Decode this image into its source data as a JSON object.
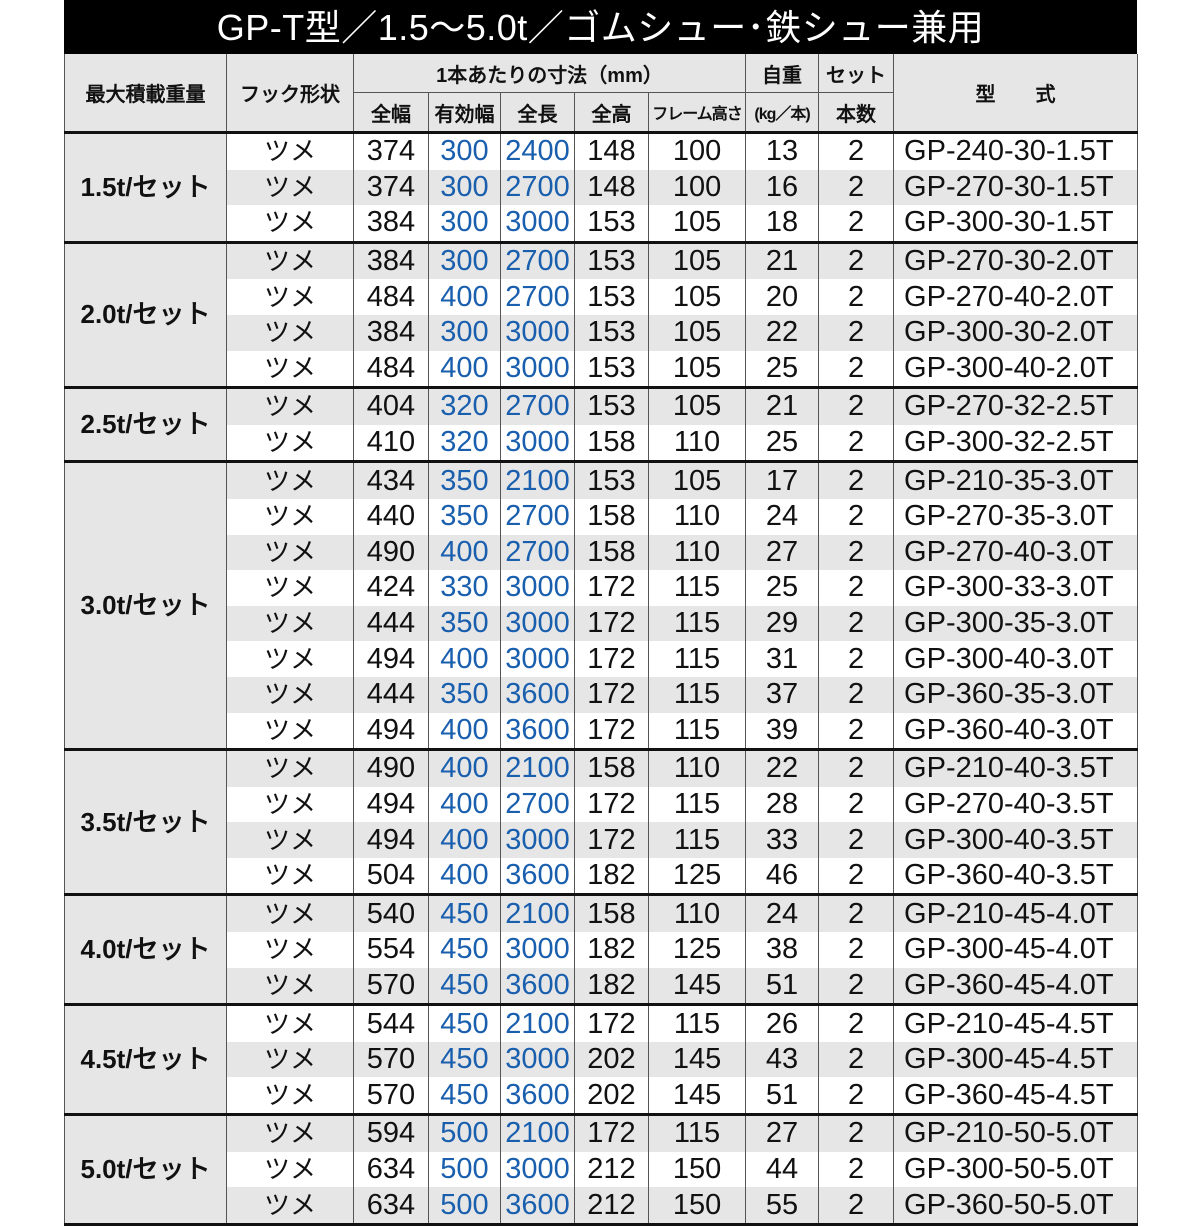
{
  "title": "GP-T型／1.5〜5.0t／ゴムシュー･鉄シュー兼用",
  "headers": {
    "max_load": "最大積載重量",
    "hook": "フック形状",
    "dims": "1本あたりの寸法（mm）",
    "width": "全幅",
    "eff_width": "有効幅",
    "length": "全長",
    "height": "全高",
    "frame_height": "フレーム高さ",
    "weight_1": "自重",
    "weight_2": "(kg／本)",
    "set_1": "セット",
    "set_2": "本数",
    "model": "型　　式"
  },
  "groups": [
    {
      "load": "1.5t/セット",
      "rows": [
        [
          "ツメ",
          "374",
          "300",
          "2400",
          "148",
          "100",
          "13",
          "2",
          "GP-240-30-1.5T"
        ],
        [
          "ツメ",
          "374",
          "300",
          "2700",
          "148",
          "100",
          "16",
          "2",
          "GP-270-30-1.5T"
        ],
        [
          "ツメ",
          "384",
          "300",
          "3000",
          "153",
          "105",
          "18",
          "2",
          "GP-300-30-1.5T"
        ]
      ]
    },
    {
      "load": "2.0t/セット",
      "rows": [
        [
          "ツメ",
          "384",
          "300",
          "2700",
          "153",
          "105",
          "21",
          "2",
          "GP-270-30-2.0T"
        ],
        [
          "ツメ",
          "484",
          "400",
          "2700",
          "153",
          "105",
          "20",
          "2",
          "GP-270-40-2.0T"
        ],
        [
          "ツメ",
          "384",
          "300",
          "3000",
          "153",
          "105",
          "22",
          "2",
          "GP-300-30-2.0T"
        ],
        [
          "ツメ",
          "484",
          "400",
          "3000",
          "153",
          "105",
          "25",
          "2",
          "GP-300-40-2.0T"
        ]
      ]
    },
    {
      "load": "2.5t/セット",
      "rows": [
        [
          "ツメ",
          "404",
          "320",
          "2700",
          "153",
          "105",
          "21",
          "2",
          "GP-270-32-2.5T"
        ],
        [
          "ツメ",
          "410",
          "320",
          "3000",
          "158",
          "110",
          "25",
          "2",
          "GP-300-32-2.5T"
        ]
      ]
    },
    {
      "load": "3.0t/セット",
      "rows": [
        [
          "ツメ",
          "434",
          "350",
          "2100",
          "153",
          "105",
          "17",
          "2",
          "GP-210-35-3.0T"
        ],
        [
          "ツメ",
          "440",
          "350",
          "2700",
          "158",
          "110",
          "24",
          "2",
          "GP-270-35-3.0T"
        ],
        [
          "ツメ",
          "490",
          "400",
          "2700",
          "158",
          "110",
          "27",
          "2",
          "GP-270-40-3.0T"
        ],
        [
          "ツメ",
          "424",
          "330",
          "3000",
          "172",
          "115",
          "25",
          "2",
          "GP-300-33-3.0T"
        ],
        [
          "ツメ",
          "444",
          "350",
          "3000",
          "172",
          "115",
          "29",
          "2",
          "GP-300-35-3.0T"
        ],
        [
          "ツメ",
          "494",
          "400",
          "3000",
          "172",
          "115",
          "31",
          "2",
          "GP-300-40-3.0T"
        ],
        [
          "ツメ",
          "444",
          "350",
          "3600",
          "172",
          "115",
          "37",
          "2",
          "GP-360-35-3.0T"
        ],
        [
          "ツメ",
          "494",
          "400",
          "3600",
          "172",
          "115",
          "39",
          "2",
          "GP-360-40-3.0T"
        ]
      ]
    },
    {
      "load": "3.5t/セット",
      "rows": [
        [
          "ツメ",
          "490",
          "400",
          "2100",
          "158",
          "110",
          "22",
          "2",
          "GP-210-40-3.5T"
        ],
        [
          "ツメ",
          "494",
          "400",
          "2700",
          "172",
          "115",
          "28",
          "2",
          "GP-270-40-3.5T"
        ],
        [
          "ツメ",
          "494",
          "400",
          "3000",
          "172",
          "115",
          "33",
          "2",
          "GP-300-40-3.5T"
        ],
        [
          "ツメ",
          "504",
          "400",
          "3600",
          "182",
          "125",
          "46",
          "2",
          "GP-360-40-3.5T"
        ]
      ]
    },
    {
      "load": "4.0t/セット",
      "rows": [
        [
          "ツメ",
          "540",
          "450",
          "2100",
          "158",
          "110",
          "24",
          "2",
          "GP-210-45-4.0T"
        ],
        [
          "ツメ",
          "554",
          "450",
          "3000",
          "182",
          "125",
          "38",
          "2",
          "GP-300-45-4.0T"
        ],
        [
          "ツメ",
          "570",
          "450",
          "3600",
          "182",
          "145",
          "51",
          "2",
          "GP-360-45-4.0T"
        ]
      ]
    },
    {
      "load": "4.5t/セット",
      "rows": [
        [
          "ツメ",
          "544",
          "450",
          "2100",
          "172",
          "115",
          "26",
          "2",
          "GP-210-45-4.5T"
        ],
        [
          "ツメ",
          "570",
          "450",
          "3000",
          "202",
          "145",
          "43",
          "2",
          "GP-300-45-4.5T"
        ],
        [
          "ツメ",
          "570",
          "450",
          "3600",
          "202",
          "145",
          "51",
          "2",
          "GP-360-45-4.5T"
        ]
      ]
    },
    {
      "load": "5.0t/セット",
      "rows": [
        [
          "ツメ",
          "594",
          "500",
          "2100",
          "172",
          "115",
          "27",
          "2",
          "GP-210-50-5.0T"
        ],
        [
          "ツメ",
          "634",
          "500",
          "3000",
          "212",
          "150",
          "44",
          "2",
          "GP-300-50-5.0T"
        ],
        [
          "ツメ",
          "634",
          "500",
          "3600",
          "212",
          "150",
          "55",
          "2",
          "GP-360-50-5.0T"
        ]
      ]
    }
  ],
  "colors": {
    "header_bg": "#e6e6e6",
    "title_bg": "#000000",
    "blue_values": "#1a5fae"
  }
}
